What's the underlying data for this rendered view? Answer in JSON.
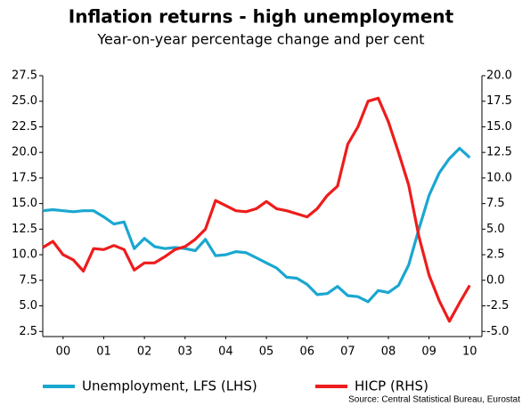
{
  "chart_data": {
    "type": "line",
    "title": "Inflation returns - high unemployment",
    "subtitle": "Year-on-year percentage change and per cent",
    "source": "Source: Central Statistical Bureau, Eurostat",
    "x": [
      2000,
      2000.25,
      2000.5,
      2000.75,
      2001,
      2001.25,
      2001.5,
      2001.75,
      2002,
      2002.25,
      2002.5,
      2002.75,
      2003,
      2003.25,
      2003.5,
      2003.75,
      2004,
      2004.25,
      2004.5,
      2004.75,
      2005,
      2005.25,
      2005.5,
      2005.75,
      2006,
      2006.25,
      2006.5,
      2006.75,
      2007,
      2007.25,
      2007.5,
      2007.75,
      2008,
      2008.25,
      2008.5,
      2008.75,
      2009,
      2009.25,
      2009.5,
      2009.75,
      2010,
      2010.25,
      2010.5
    ],
    "series": [
      {
        "name": "Unemployment, LFS (LHS)",
        "color": "#1aa7d0",
        "axis": "y",
        "values": [
          14.3,
          14.4,
          14.3,
          14.2,
          14.3,
          14.3,
          13.7,
          13.0,
          13.2,
          10.6,
          11.6,
          10.8,
          10.6,
          10.7,
          10.6,
          10.4,
          11.5,
          9.9,
          10.0,
          10.3,
          10.2,
          9.7,
          9.2,
          8.7,
          7.8,
          7.7,
          7.1,
          6.1,
          6.2,
          6.9,
          6.0,
          5.9,
          5.4,
          6.5,
          6.3,
          7.0,
          9.0,
          12.5,
          15.8,
          18.0,
          19.4,
          20.4,
          19.5
        ]
      },
      {
        "name": "HICP (RHS)",
        "color": "#ee1c1c",
        "axis": "y2",
        "values": [
          3.2,
          3.8,
          2.5,
          2.0,
          0.9,
          3.1,
          3.0,
          3.4,
          3.0,
          1.0,
          1.7,
          1.7,
          2.3,
          3.0,
          3.3,
          4.0,
          5.0,
          7.8,
          7.3,
          6.8,
          6.7,
          7.0,
          7.7,
          7.0,
          6.8,
          6.5,
          6.2,
          7.0,
          8.3,
          9.2,
          13.3,
          15.0,
          17.5,
          17.8,
          15.5,
          12.5,
          9.3,
          4.3,
          0.5,
          -2.0,
          -4.0,
          -2.2,
          -0.5
        ]
      }
    ],
    "xlim": [
      2000,
      2010.8
    ],
    "xticks": [
      {
        "value": 2000.5,
        "label": "00"
      },
      {
        "value": 2001.5,
        "label": "01"
      },
      {
        "value": 2002.5,
        "label": "02"
      },
      {
        "value": 2003.5,
        "label": "03"
      },
      {
        "value": 2004.5,
        "label": "04"
      },
      {
        "value": 2005.5,
        "label": "05"
      },
      {
        "value": 2006.5,
        "label": "06"
      },
      {
        "value": 2007.5,
        "label": "07"
      },
      {
        "value": 2008.5,
        "label": "08"
      },
      {
        "value": 2009.5,
        "label": "09"
      },
      {
        "value": 2010.5,
        "label": "10"
      }
    ],
    "ylim": [
      2,
      27.5
    ],
    "yticks": [
      2.5,
      5.0,
      7.5,
      10.0,
      12.5,
      15.0,
      17.5,
      20.0,
      22.5,
      25.0,
      27.5
    ],
    "y2lim": [
      -5.5,
      20
    ],
    "y2ticks": [
      -5.0,
      -2.5,
      0.0,
      2.5,
      5.0,
      7.5,
      10.0,
      12.5,
      15.0,
      17.5,
      20.0
    ],
    "legend": "bottom"
  }
}
